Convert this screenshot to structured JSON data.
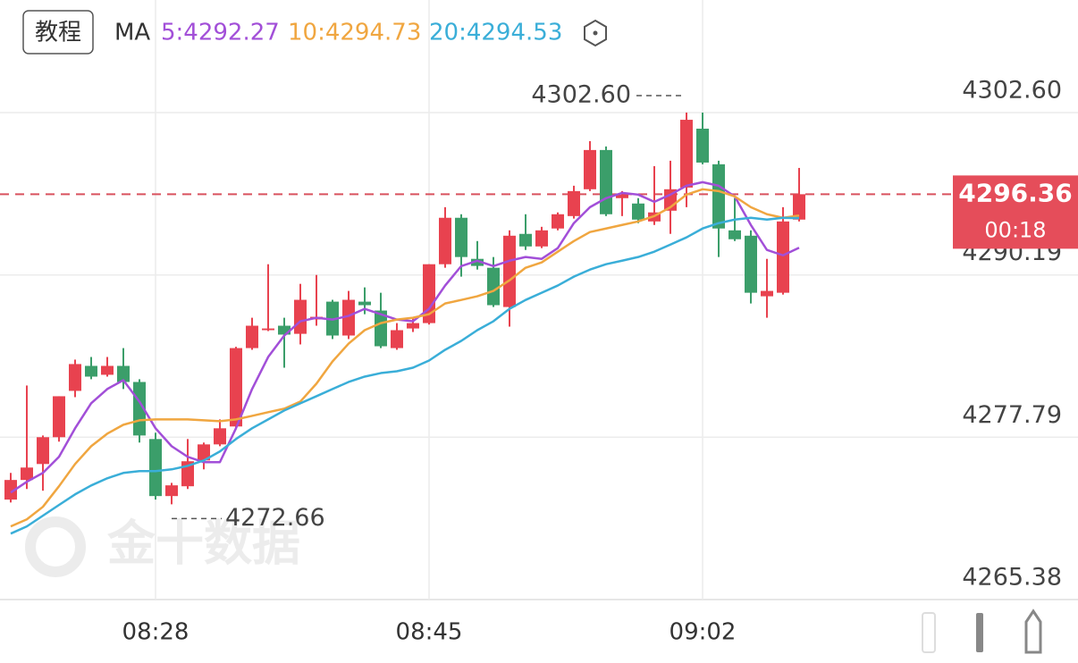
{
  "chart_data": {
    "type": "candlestick",
    "tutorial_button": "教程",
    "ma_label": "MA",
    "watermark": "金十数据",
    "categories": [
      null,
      null,
      null,
      null,
      null,
      null,
      null,
      null,
      null,
      "08:28",
      null,
      null,
      null,
      null,
      null,
      null,
      null,
      null,
      null,
      null,
      null,
      null,
      null,
      null,
      null,
      null,
      "08:45",
      null,
      null,
      null,
      null,
      null,
      null,
      null,
      null,
      null,
      null,
      null,
      null,
      null,
      null,
      null,
      null,
      "09:02",
      null,
      null,
      null,
      null,
      null,
      null
    ],
    "open": [
      4273.02,
      4274.52,
      4275.74,
      4277.79,
      4281.33,
      4283.24,
      4282.56,
      4283.24,
      4282.01,
      4277.65,
      4273.29,
      4274.04,
      4276.01,
      4277.24,
      4278.61,
      4284.6,
      4285.97,
      4286.31,
      4285.69,
      4286.79,
      4288.15,
      4285.56,
      4288.15,
      4287.47,
      4284.6,
      4286.1,
      4286.51,
      4291.01,
      4294.56,
      4291.42,
      4290.74,
      4287.74,
      4293.33,
      4292.37,
      4293.74,
      4294.69,
      4296.74,
      4299.74,
      4296.06,
      4295.65,
      4294.28,
      4295.1,
      4296.87,
      4301.37,
      4298.65,
      4293.6,
      4293.19,
      4288.56,
      4288.83,
      4294.42
    ],
    "high": [
      4275.06,
      4281.74,
      4277.92,
      4280.92,
      4283.72,
      4283.92,
      4283.92,
      4284.6,
      4282.22,
      4278.13,
      4274.3,
      4277.65,
      4277.38,
      4279.15,
      4284.7,
      4286.92,
      4291.01,
      4286.92,
      4289.51,
      4290.19,
      4288.29,
      4288.97,
      4289.24,
      4288.83,
      4286.51,
      4286.99,
      4291.01,
      4295.37,
      4294.83,
      4292.78,
      4291.56,
      4293.6,
      4294.83,
      4293.87,
      4294.97,
      4297.01,
      4300.42,
      4300.01,
      4296.6,
      4296.06,
      4298.51,
      4298.92,
      4302.6,
      4302.6,
      4298.92,
      4296.06,
      4293.6,
      4291.42,
      4295.37,
      4298.37
    ],
    "low": [
      4272.8,
      4273.83,
      4273.7,
      4277.45,
      4280.85,
      4282.22,
      4282.42,
      4281.47,
      4277.38,
      4273.02,
      4272.66,
      4273.83,
      4275.33,
      4277.1,
      4278.5,
      4284.47,
      4285.9,
      4283.1,
      4284.88,
      4286.31,
      4285.29,
      4285.29,
      4287.19,
      4284.6,
      4284.47,
      4285.83,
      4286.4,
      4290.74,
      4290.06,
      4290.6,
      4287.74,
      4286.24,
      4292.1,
      4292.24,
      4293.6,
      4294.5,
      4296.6,
      4294.69,
      4294.69,
      4294.15,
      4294.01,
      4293.33,
      4295.37,
      4298.65,
      4291.56,
      4292.78,
      4288.01,
      4286.92,
      4288.69,
      4294.28
    ],
    "close": [
      4274.52,
      4275.47,
      4277.79,
      4280.92,
      4283.38,
      4282.42,
      4283.24,
      4282.01,
      4277.92,
      4273.29,
      4274.11,
      4275.95,
      4277.24,
      4278.47,
      4284.6,
      4286.31,
      4286.1,
      4285.63,
      4288.29,
      4286.99,
      4285.56,
      4288.29,
      4287.88,
      4284.74,
      4285.97,
      4286.51,
      4291.01,
      4294.56,
      4291.56,
      4290.88,
      4287.88,
      4293.19,
      4292.37,
      4293.6,
      4294.83,
      4296.6,
      4299.74,
      4294.83,
      4296.33,
      4294.42,
      4294.97,
      4296.74,
      4302.05,
      4298.78,
      4293.74,
      4292.92,
      4288.83,
      4288.97,
      4294.28,
      4296.36
    ],
    "up_color": "#e8424f",
    "down_color": "#3b9e6a",
    "series": [
      {
        "name": "5:4292.27",
        "color": "#a24fd8",
        "values": [
          4273.56,
          4274.38,
          4275.06,
          4276.29,
          4278.47,
          4280.38,
          4281.47,
          4282.15,
          4280.51,
          4278.47,
          4277.1,
          4276.29,
          4275.88,
          4275.88,
          4278.47,
          4281.47,
          4283.92,
          4285.56,
          4286.65,
          4286.92,
          4286.78,
          4287.06,
          4287.6,
          4287.19,
          4286.78,
          4286.65,
          4287.6,
          4289.38,
          4290.87,
          4291.28,
          4290.87,
          4291.28,
          4291.56,
          4291.42,
          4292.24,
          4294.15,
          4295.37,
          4296.06,
          4296.46,
          4296.33,
          4295.78,
          4296.33,
          4297.01,
          4297.28,
          4297.01,
          4296.19,
          4294.01,
          4292.1,
          4291.69,
          4292.27
        ]
      },
      {
        "name": "10:4294.73",
        "color": "#f0a640",
        "values": [
          4270.97,
          4271.51,
          4272.47,
          4274.04,
          4275.74,
          4277.1,
          4278.06,
          4278.74,
          4279.08,
          4279.15,
          4279.15,
          4279.15,
          4279.08,
          4279.01,
          4279.15,
          4279.42,
          4279.7,
          4279.97,
          4280.51,
          4281.88,
          4283.58,
          4284.94,
          4285.97,
          4286.51,
          4286.78,
          4286.92,
          4287.19,
          4288.01,
          4288.28,
          4288.56,
          4288.97,
          4289.78,
          4290.74,
          4291.15,
          4291.97,
          4292.78,
          4293.47,
          4293.74,
          4294.01,
          4294.28,
          4294.69,
          4295.37,
          4296.33,
          4296.74,
          4296.6,
          4296.19,
          4295.37,
          4294.83,
          4294.56,
          4294.73
        ]
      },
      {
        "name": "20:4294.53",
        "color": "#3aaed8",
        "values": [
          4270.42,
          4270.97,
          4271.79,
          4272.61,
          4273.42,
          4274.1,
          4274.65,
          4275.06,
          4275.2,
          4275.2,
          4275.33,
          4275.6,
          4276.01,
          4276.7,
          4277.65,
          4278.47,
          4279.15,
          4279.83,
          4280.38,
          4280.92,
          4281.47,
          4282.01,
          4282.42,
          4282.69,
          4282.83,
          4283.1,
          4283.65,
          4284.47,
          4285.15,
          4285.97,
          4286.65,
          4287.6,
          4288.28,
          4288.83,
          4289.38,
          4290.06,
          4290.6,
          4291.01,
          4291.28,
          4291.56,
          4291.97,
          4292.51,
          4293.06,
          4293.74,
          4294.15,
          4294.42,
          4294.56,
          4294.42,
          4294.56,
          4294.53
        ]
      }
    ],
    "ylim": [
      4265.38,
      4302.6
    ],
    "yticks": [
      4265.38,
      4277.79,
      4290.19,
      {
        "value": 4302.6,
        "label": "4302.60"
      }
    ],
    "grid": true,
    "high_marker": {
      "value": 4302.6,
      "label": "4302.60"
    },
    "low_marker": 4272.66,
    "last_price": 4296.36,
    "countdown": "00:18"
  }
}
